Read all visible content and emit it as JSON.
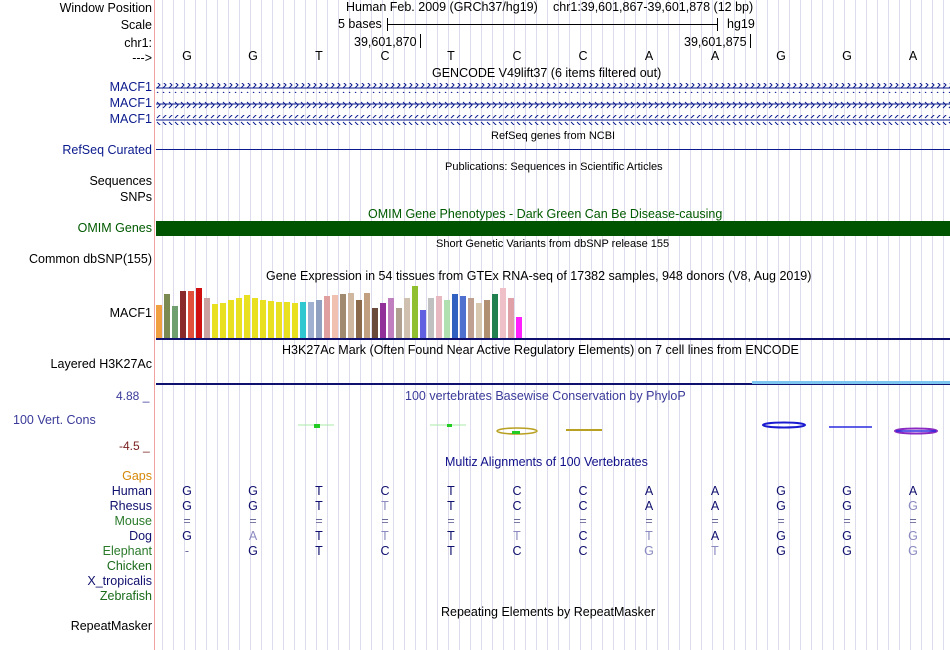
{
  "header": {
    "window_position_label": "Window Position",
    "scale_label": "Scale",
    "chrom_label": "chr1:",
    "arrow_label": "--->",
    "assembly": "Human Feb. 2009 (GRCh37/hg19)",
    "region": "chr1:39,601,867-39,601,878 (12 bp)",
    "scale_text": "5 bases",
    "db": "hg19",
    "coord1": "39,601,870",
    "coord2": "39,601,875"
  },
  "sequence": [
    "G",
    "G",
    "T",
    "C",
    "T",
    "C",
    "C",
    "A",
    "A",
    "G",
    "G",
    "A"
  ],
  "tracks": {
    "gencode": {
      "title": "GENCODE V49lift37 (6 items filtered out)",
      "rows": [
        "MACF1",
        "MACF1",
        "MACF1"
      ]
    },
    "refseq": {
      "title": "RefSeq genes from NCBI",
      "label": "RefSeq Curated"
    },
    "publications": {
      "title": "Publications: Sequences in Scientific Articles",
      "label1": "Sequences",
      "label2": "SNPs"
    },
    "omim": {
      "title": "OMIM Gene Phenotypes - Dark Green Can Be Disease-causing",
      "label": "OMIM Genes",
      "color": "#005400"
    },
    "dbsnp": {
      "title": "Short Genetic Variants from dbSNP release 155",
      "label": "Common dbSNP(155)"
    },
    "gtex": {
      "title": "Gene Expression in 54 tissues from GTEx RNA-seq of 17382 samples, 948 donors (V8, Aug 2019)",
      "label": "MACF1"
    },
    "h3k27ac": {
      "title": "H3K27Ac Mark (Often Found Near Active Regulatory Elements) on 7 cell lines from ENCODE",
      "label": "Layered H3K27Ac"
    },
    "phylop": {
      "title": "100 vertebrates Basewise Conservation by PhyloP",
      "label": "100 Vert. Cons",
      "max": "4.88 _",
      "min": "-4.5 _"
    },
    "multiz": {
      "title": "Multiz Alignments of 100 Vertebrates",
      "gaps_label": "Gaps",
      "species": [
        {
          "name": "Human",
          "seq": [
            "G",
            "G",
            "T",
            "C",
            "T",
            "C",
            "C",
            "A",
            "A",
            "G",
            "G",
            "A"
          ]
        },
        {
          "name": "Rhesus",
          "seq": [
            "G",
            "G",
            "T",
            "T",
            "T",
            "C",
            "C",
            "A",
            "A",
            "G",
            "G",
            "G"
          ]
        },
        {
          "name": "Mouse",
          "seq": [
            "=",
            "=",
            "=",
            "=",
            "=",
            "=",
            "=",
            "=",
            "=",
            "=",
            "=",
            "="
          ]
        },
        {
          "name": "Dog",
          "seq": [
            "G",
            "A",
            "T",
            "T",
            "T",
            "T",
            "C",
            "T",
            "A",
            "G",
            "G",
            "G"
          ]
        },
        {
          "name": "Elephant",
          "seq": [
            "-",
            "G",
            "T",
            "C",
            "T",
            "C",
            "C",
            "G",
            "T",
            "G",
            "G",
            "G"
          ]
        },
        {
          "name": "Chicken",
          "seq": [
            "",
            "",
            "",
            "",
            "",
            "",
            "",
            "",
            "",
            "",
            "",
            ""
          ]
        },
        {
          "name": "X_tropicalis",
          "seq": [
            "",
            "",
            "",
            "",
            "",
            "",
            "",
            "",
            "",
            "",
            "",
            ""
          ]
        },
        {
          "name": "Zebrafish",
          "seq": [
            "",
            "",
            "",
            "",
            "",
            "",
            "",
            "",
            "",
            "",
            "",
            ""
          ]
        }
      ]
    },
    "repeatmasker": {
      "title": "Repeating Elements by RepeatMasker",
      "label": "RepeatMasker"
    }
  }
}
